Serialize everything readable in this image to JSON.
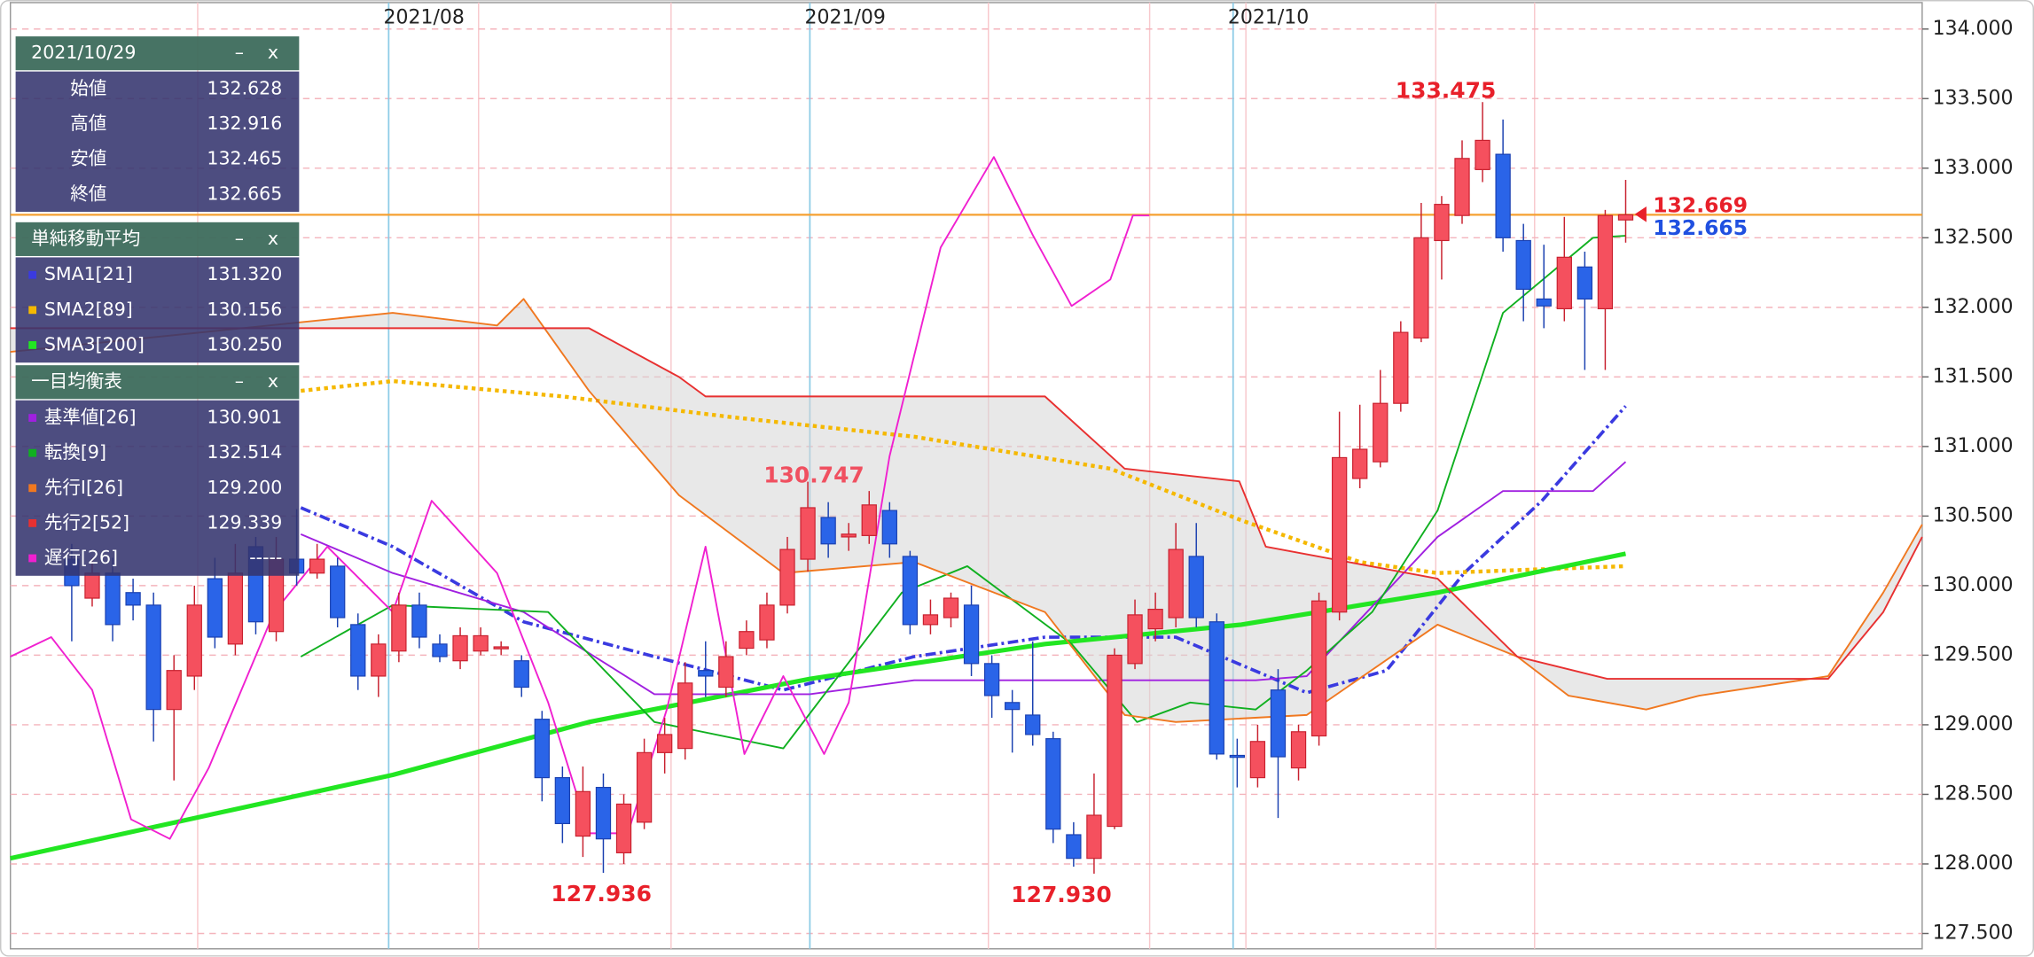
{
  "chart_data": {
    "type": "candlestick",
    "categories": [
      null,
      null,
      null,
      null,
      null,
      null,
      null,
      null,
      null,
      null,
      null,
      null,
      null,
      null,
      null,
      null,
      null,
      null,
      null,
      null,
      null,
      null,
      null,
      null,
      null,
      null,
      null,
      null,
      null,
      null,
      null,
      null,
      null,
      null,
      null,
      null,
      null,
      null,
      null,
      null,
      null,
      null,
      null,
      null,
      null,
      null,
      null,
      null,
      null,
      null,
      null,
      null,
      null,
      null,
      null,
      null,
      null,
      null,
      null,
      null,
      null,
      null,
      null,
      null,
      null,
      null,
      null,
      null,
      null,
      null,
      null,
      null,
      null,
      null,
      null,
      null,
      null
    ],
    "open": [
      130.19,
      129.91,
      130.09,
      129.95,
      129.86,
      129.11,
      129.35,
      130.05,
      129.58,
      130.28,
      129.67,
      130.19,
      130.09,
      130.14,
      129.72,
      129.35,
      129.53,
      129.86,
      129.58,
      129.46,
      129.53,
      129.55,
      129.46,
      129.04,
      128.62,
      128.2,
      128.55,
      128.08,
      128.3,
      128.8,
      128.83,
      129.39,
      129.27,
      129.55,
      129.61,
      129.86,
      130.19,
      130.49,
      130.35,
      130.36,
      130.54,
      130.21,
      129.72,
      129.77,
      129.86,
      129.44,
      129.16,
      129.07,
      128.9,
      128.21,
      128.04,
      128.27,
      129.44,
      129.69,
      129.77,
      130.21,
      129.74,
      128.78,
      128.62,
      129.25,
      128.69,
      128.92,
      129.81,
      130.77,
      130.89,
      131.31,
      131.78,
      132.48,
      132.66,
      132.99,
      133.1,
      132.48,
      132.06,
      131.99,
      132.29,
      131.99,
      132.628
    ],
    "high": [
      130.3,
      130.2,
      130.2,
      130.05,
      129.95,
      129.5,
      130.0,
      130.2,
      130.3,
      130.35,
      130.35,
      130.55,
      130.3,
      130.2,
      129.8,
      129.65,
      129.95,
      129.95,
      129.65,
      129.7,
      129.7,
      129.6,
      129.5,
      129.1,
      128.7,
      128.7,
      128.65,
      128.5,
      128.9,
      129.05,
      129.45,
      129.6,
      129.6,
      129.75,
      129.95,
      130.35,
      130.747,
      130.6,
      130.45,
      130.68,
      130.6,
      130.25,
      129.9,
      129.95,
      130.0,
      129.5,
      129.25,
      129.6,
      128.95,
      128.3,
      128.65,
      129.55,
      129.9,
      129.95,
      130.45,
      130.45,
      129.8,
      128.9,
      129.0,
      129.4,
      129.0,
      129.95,
      131.25,
      131.3,
      131.55,
      131.9,
      132.75,
      132.8,
      133.2,
      133.475,
      133.35,
      132.6,
      132.45,
      132.65,
      132.4,
      132.7,
      132.916
    ],
    "low": [
      129.6,
      129.85,
      129.6,
      129.75,
      128.88,
      128.6,
      129.25,
      129.55,
      129.5,
      129.65,
      129.6,
      130.0,
      130.05,
      129.7,
      129.25,
      129.2,
      129.45,
      129.55,
      129.45,
      129.4,
      129.5,
      129.5,
      129.2,
      128.45,
      128.15,
      128.05,
      127.936,
      128.0,
      128.25,
      128.65,
      128.75,
      129.2,
      129.2,
      129.5,
      129.55,
      129.8,
      130.1,
      130.2,
      130.25,
      130.3,
      130.2,
      129.65,
      129.65,
      129.7,
      129.35,
      129.05,
      128.8,
      128.85,
      128.15,
      127.98,
      127.93,
      128.25,
      129.4,
      129.6,
      129.7,
      129.7,
      128.75,
      128.55,
      128.55,
      128.33,
      128.6,
      128.85,
      129.75,
      130.7,
      130.85,
      131.25,
      131.75,
      132.2,
      132.6,
      132.9,
      132.4,
      131.9,
      131.85,
      131.9,
      131.55,
      131.55,
      132.465
    ],
    "close": [
      130.0,
      130.09,
      129.72,
      129.86,
      129.11,
      129.39,
      129.86,
      129.63,
      130.09,
      129.74,
      130.19,
      130.09,
      130.19,
      129.77,
      129.35,
      129.58,
      129.86,
      129.63,
      129.49,
      129.64,
      129.64,
      129.56,
      129.27,
      128.62,
      128.29,
      128.52,
      128.18,
      128.43,
      128.8,
      128.93,
      129.3,
      129.35,
      129.49,
      129.67,
      129.86,
      130.26,
      130.56,
      130.3,
      130.37,
      130.58,
      130.3,
      129.72,
      129.79,
      129.91,
      129.44,
      129.21,
      129.11,
      128.93,
      128.25,
      128.04,
      128.35,
      129.5,
      129.79,
      129.83,
      130.26,
      129.77,
      128.79,
      128.77,
      128.88,
      128.77,
      128.95,
      129.89,
      130.92,
      130.98,
      131.31,
      131.82,
      132.5,
      132.74,
      133.07,
      133.2,
      132.5,
      132.13,
      132.01,
      132.36,
      132.06,
      132.66,
      132.665
    ],
    "up_color": "#f5505e",
    "down_color": "#2a64e8",
    "current_price_color": "#f5a030",
    "cloud_color": "#d6d6d6",
    "series": [
      {
        "name": "SMA1[21]",
        "color": "#3a3ae0",
        "dash": "dashdot",
        "width": 2.5,
        "x": [
          11.2,
          15.7,
          22.1,
          28.5,
          34.8,
          41.2,
          47.6,
          54.0,
          60.4,
          64.3,
          68.1,
          71.9,
          76
        ],
        "values": [
          130.56,
          130.28,
          129.74,
          129.49,
          129.25,
          129.49,
          129.63,
          129.63,
          129.23,
          129.39,
          130.09,
          130.61,
          131.29
        ]
      },
      {
        "name": "SMA2[89]",
        "color": "#f5b800",
        "dash": "dotted",
        "width": 3,
        "x": [
          11.2,
          15.7,
          24.0,
          32.3,
          41.2,
          50.8,
          57.2,
          63.0,
          66.8,
          76
        ],
        "values": [
          131.4,
          131.47,
          131.36,
          131.21,
          131.07,
          130.84,
          130.47,
          130.17,
          130.09,
          130.14
        ]
      },
      {
        "name": "SMA3[200]",
        "color": "#22e622",
        "dash": "solid",
        "width": 3.5,
        "x": [
          -3,
          15.7,
          25.3,
          36.1,
          47.6,
          57.2,
          66.8,
          76
        ],
        "values": [
          128.04,
          128.64,
          129.02,
          129.33,
          129.58,
          129.72,
          129.95,
          130.23
        ]
      },
      {
        "name": "基準値[26]",
        "color": "#a020e0",
        "dash": "solid",
        "width": 1.3,
        "x": [
          11.2,
          15.7,
          22.1,
          28.5,
          36.1,
          41.2,
          57.9,
          60.4,
          66.8,
          70,
          74.4,
          76
        ],
        "values": [
          130.37,
          130.09,
          129.81,
          129.22,
          129.22,
          129.32,
          129.32,
          129.35,
          130.35,
          130.68,
          130.68,
          130.89
        ]
      },
      {
        "name": "転換[9]",
        "color": "#10b020",
        "dash": "solid",
        "width": 1.3,
        "x": [
          11.2,
          15.7,
          23.3,
          28.5,
          34.8,
          40.6,
          43.8,
          48.9,
          52.1,
          54.7,
          57.9,
          60.4,
          63.6,
          66.8,
          70,
          74.4,
          76
        ],
        "values": [
          129.49,
          129.86,
          129.81,
          129.02,
          128.83,
          129.95,
          130.14,
          129.58,
          129.02,
          129.16,
          129.11,
          129.39,
          129.81,
          130.54,
          131.96,
          132.5,
          132.514
        ]
      },
      {
        "name": "先行Ⅰ[26]",
        "color": "#f07820",
        "dash": "solid",
        "width": 1.3,
        "x": [
          -3,
          15.7,
          20.8,
          22.1,
          25.3,
          29.7,
          34.8,
          41.2,
          47.6,
          51.5,
          54.0,
          60.4,
          66.8,
          70.7,
          73.2,
          77.0,
          79.6,
          85.9,
          88.6,
          90.5
        ],
        "values": [
          131.68,
          131.96,
          131.87,
          132.06,
          131.4,
          130.65,
          130.09,
          130.17,
          129.81,
          129.07,
          129.02,
          129.07,
          129.72,
          129.49,
          129.21,
          129.11,
          129.21,
          129.35,
          129.95,
          130.44
        ]
      },
      {
        "name": "先行2[52]",
        "color": "#e83030",
        "dash": "solid",
        "width": 1.3,
        "x": [
          -3,
          20.8,
          25.3,
          29.7,
          31.0,
          47.6,
          51.5,
          57.1,
          58.4,
          66.8,
          70.7,
          75.1,
          85.9,
          88.6,
          90.5
        ],
        "values": [
          131.85,
          131.85,
          131.85,
          131.5,
          131.36,
          131.36,
          130.84,
          130.75,
          130.28,
          130.05,
          129.49,
          129.33,
          129.33,
          129.81,
          130.35
        ]
      },
      {
        "name": "遅行[26]",
        "color": "#f020d0",
        "dash": "solid",
        "width": 1.3,
        "x": [
          -3,
          -1,
          1,
          2.9,
          4.8,
          6.7,
          9.9,
          12.5,
          15.7,
          17.6,
          20.8,
          23.3,
          25.3,
          27.2,
          29.1,
          31.0,
          32.9,
          34.8,
          36.8,
          38.0,
          40.0,
          42.5,
          45.1,
          47.0,
          48.9,
          50.8,
          51.9,
          52.7
        ],
        "values": [
          129.49,
          129.63,
          129.25,
          128.32,
          128.18,
          128.69,
          129.81,
          130.28,
          129.81,
          130.61,
          130.09,
          129.16,
          128.22,
          128.22,
          129.11,
          130.28,
          128.79,
          129.35,
          128.79,
          129.16,
          130.93,
          132.43,
          133.08,
          132.52,
          132.01,
          132.2,
          132.66,
          132.66
        ]
      }
    ],
    "xlim": [
      -3,
      90.5
    ],
    "xticks": [
      {
        "value": 15.5,
        "label": "2021/08"
      },
      {
        "value": 36.1,
        "label": "2021/09"
      },
      {
        "value": 56.8,
        "label": "2021/10"
      }
    ],
    "ylim": [
      127.39,
      134.19
    ],
    "yticks": [
      {
        "value": 127.5,
        "label": "127.500"
      },
      {
        "value": 128,
        "label": "128.000"
      },
      {
        "value": 128.5,
        "label": "128.500"
      },
      {
        "value": 129,
        "label": "129.000"
      },
      {
        "value": 129.5,
        "label": "129.500"
      },
      {
        "value": 130,
        "label": "130.000"
      },
      {
        "value": 130.5,
        "label": "130.500"
      },
      {
        "value": 131,
        "label": "131.000"
      },
      {
        "value": 131.5,
        "label": "131.500"
      },
      {
        "value": 132,
        "label": "132.000"
      },
      {
        "value": 132.5,
        "label": "132.500"
      },
      {
        "value": 133,
        "label": "133.000"
      },
      {
        "value": 133.5,
        "label": "133.500"
      },
      {
        "value": 134,
        "label": "134.000"
      }
    ],
    "grid": true,
    "annotations": [
      {
        "text": "133.475",
        "x": 67.2,
        "y": 133.475,
        "position": "above",
        "color": "#e8202a"
      },
      {
        "text": "127.936",
        "x": 25.9,
        "y": 127.936,
        "position": "below",
        "color": "#e8202a"
      },
      {
        "text": "127.930",
        "x": 48.4,
        "y": 127.93,
        "position": "below",
        "color": "#e8202a"
      },
      {
        "text": "130.747",
        "x": 36.3,
        "y": 130.747,
        "position": "left",
        "color": "#f05060"
      }
    ],
    "price_tags": [
      {
        "text": "132.669",
        "y": 132.669,
        "color": "#e8202a"
      },
      {
        "text": "132.665",
        "y": 132.665,
        "color": "#2050e0"
      }
    ]
  },
  "panel": {
    "sections": [
      {
        "title": "2021/10/29",
        "controls": [
          "–",
          "x"
        ],
        "rows": [
          {
            "label": "始値",
            "value": "132.628"
          },
          {
            "label": "高値",
            "value": "132.916"
          },
          {
            "label": "安値",
            "value": "132.465"
          },
          {
            "label": "終値",
            "value": "132.665"
          }
        ]
      },
      {
        "title": "単純移動平均",
        "controls": [
          "–",
          "x"
        ],
        "rows": [
          {
            "label": "SMA1[21]",
            "value": "131.320"
          },
          {
            "label": "SMA2[89]",
            "value": "130.156"
          },
          {
            "label": "SMA3[200]",
            "value": "130.250"
          }
        ]
      },
      {
        "title": "一目均衡表",
        "controls": [
          "–",
          "x"
        ],
        "rows": [
          {
            "label": "基準値[26]",
            "value": "130.901"
          },
          {
            "label": "転換[9]",
            "value": "132.514"
          },
          {
            "label": "先行Ⅰ[26]",
            "value": "129.200"
          },
          {
            "label": "先行2[52]",
            "value": "129.339"
          },
          {
            "label": "遅行[26]",
            "value": "-----"
          }
        ]
      }
    ]
  }
}
